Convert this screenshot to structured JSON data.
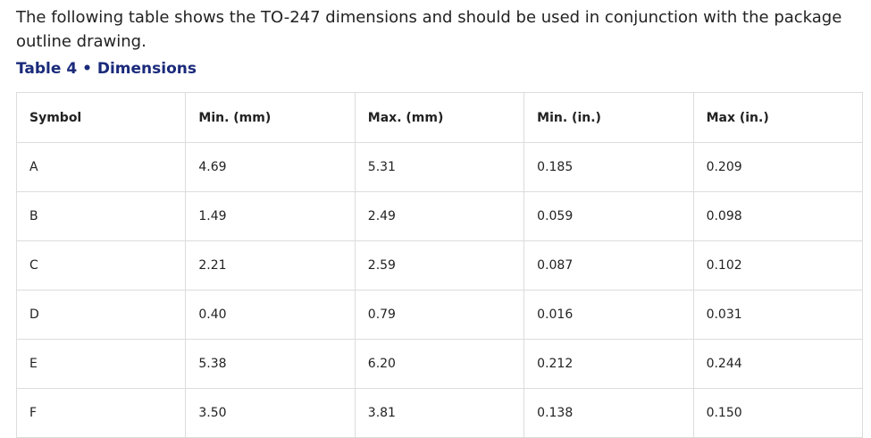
{
  "intro": "The following table shows the TO-247 dimensions and should be used in conjunction with the package outline drawing.",
  "caption": "Table 4 • Dimensions",
  "table": {
    "header": [
      "Symbol",
      "Min. (mm)",
      "Max. (mm)",
      "Min. (in.)",
      "Max (in.)"
    ],
    "rows": [
      [
        "A",
        "4.69",
        "5.31",
        "0.185",
        "0.209"
      ],
      [
        "B",
        "1.49",
        "2.49",
        "0.059",
        "0.098"
      ],
      [
        "C",
        "2.21",
        "2.59",
        "0.087",
        "0.102"
      ],
      [
        "D",
        "0.40",
        "0.79",
        "0.016",
        "0.031"
      ],
      [
        "E",
        "5.38",
        "6.20",
        "0.212",
        "0.244"
      ],
      [
        "F",
        "3.50",
        "3.81",
        "0.138",
        "0.150"
      ]
    ]
  }
}
